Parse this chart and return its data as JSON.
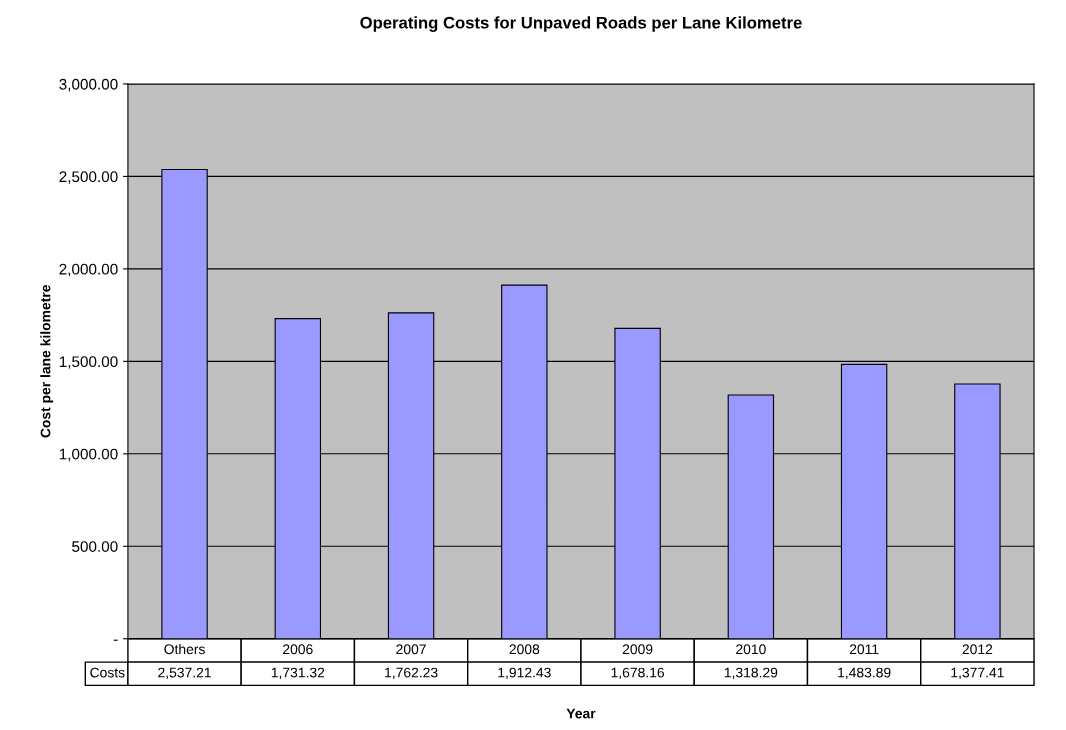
{
  "chart_data": {
    "type": "bar",
    "title": "Operating Costs for Unpaved Roads per Lane Kilometre",
    "xlabel": "Year",
    "ylabel": "Cost per lane kilometre",
    "categories": [
      "Others",
      "2006",
      "2007",
      "2008",
      "2009",
      "2010",
      "2011",
      "2012"
    ],
    "series": [
      {
        "name": "Costs",
        "color": "#9999ff",
        "values": [
          2537.21,
          1731.32,
          1762.23,
          1912.43,
          1678.16,
          1318.29,
          1483.89,
          1377.41
        ],
        "value_labels": [
          "2,537.21",
          "1,731.32",
          "1,762.23",
          "1,912.43",
          "1,678.16",
          "1,318.29",
          "1,483.89",
          "1,377.41"
        ]
      }
    ],
    "ylim": [
      0,
      3000
    ],
    "yticks": [
      {
        "value": 0,
        "label": "-"
      },
      {
        "value": 500,
        "label": "500.00"
      },
      {
        "value": 1000,
        "label": "1,000.00"
      },
      {
        "value": 1500,
        "label": "1,500.00"
      },
      {
        "value": 2000,
        "label": "2,000.00"
      },
      {
        "value": 2500,
        "label": "2,500.00"
      },
      {
        "value": 3000,
        "label": "3,000.00"
      }
    ],
    "grid": "y",
    "legend": false
  }
}
